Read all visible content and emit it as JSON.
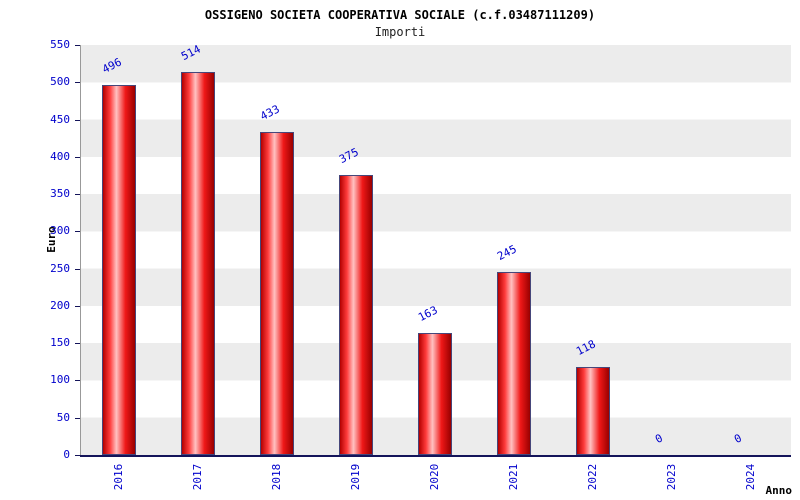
{
  "chart_data": {
    "type": "bar",
    "title": "OSSIGENO SOCIETA COOPERATIVA SOCIALE (c.f.03487111209)",
    "subtitle": "Importi",
    "categories": [
      "2016",
      "2017",
      "2018",
      "2019",
      "2020",
      "2021",
      "2022",
      "2023",
      "2024"
    ],
    "values": [
      496,
      514,
      433,
      375,
      163,
      245,
      118,
      0,
      0
    ],
    "xlabel": "Anno",
    "ylabel": "Euro",
    "ylim": [
      0,
      550
    ],
    "ytick_step": 50,
    "legend": "none",
    "grid": "alternating-horizontal-bands",
    "band_colors": [
      "#ececec",
      "#ffffff"
    ],
    "bar_color": "#e60000",
    "bar_highlight_color": "#ffc2c2",
    "bar_border_color": "#46467a",
    "value_label_color": "#0000cc",
    "tick_label_color": "#0000cc",
    "axis_color": "#14145a"
  }
}
